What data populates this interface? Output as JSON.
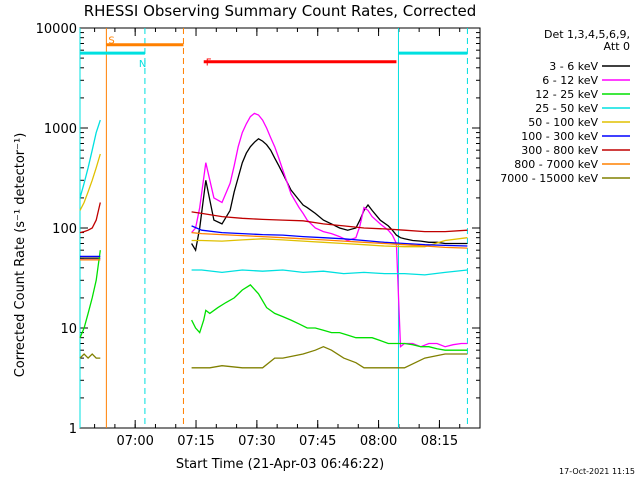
{
  "title": "RHESSI Observing Summary Count Rates, Corrected",
  "stamp": "17-Oct-2021 11:15",
  "legend": {
    "header_line1": "Det 1,3,4,5,6,9,",
    "header_line2": "Att 0"
  },
  "colors": {
    "3 - 6 keV": "#000000",
    "6 - 12 keV": "#ff00ff",
    "12 - 25 keV": "#00e000",
    "25 - 50 keV": "#00e0e0",
    "50 - 100 keV": "#e0c000",
    "100 - 300 keV": "#0000ff",
    "300 - 800 keV": "#c00000",
    "800 - 7000 keV": "#ff8000",
    "7000 - 15000 keV": "#808000",
    "saa_bar": "#ff8000",
    "night_bar": "#00e0e0",
    "flare_bar": "#ff0000"
  },
  "chart_data": {
    "type": "line",
    "title": "RHESSI Observing Summary Count Rates, Corrected",
    "xlabel": "Start Time (21-Apr-03 06:46:22)",
    "ylabel": "Corrected Count Rate (s⁻¹ detector⁻¹)",
    "y_scale": "log",
    "ylim": [
      1,
      10000
    ],
    "xlim": [
      "06:46:22",
      "08:25"
    ],
    "x_unit": "minutes after 06:46:22",
    "xlim_minutes": [
      0,
      98.6
    ],
    "x_ticks": [
      {
        "label": "07:00",
        "minute": 13.6
      },
      {
        "label": "07:15",
        "minute": 28.6
      },
      {
        "label": "07:30",
        "minute": 43.6
      },
      {
        "label": "07:45",
        "minute": 58.6
      },
      {
        "label": "08:00",
        "minute": 73.6
      },
      {
        "label": "08:15",
        "minute": 88.6
      }
    ],
    "y_ticks": [
      {
        "label": "1",
        "value": 1
      },
      {
        "label": "10",
        "value": 10
      },
      {
        "label": "100",
        "value": 100
      },
      {
        "label": "1000",
        "value": 1000
      },
      {
        "label": "10000",
        "value": 10000
      }
    ],
    "flag_bars": [
      {
        "label": "S",
        "name": "SAA",
        "x": [
          6.5,
          25.5
        ],
        "y": 6800,
        "color_key": "saa_bar"
      },
      {
        "label": "N",
        "name": "Night",
        "x": [
          0,
          16
        ],
        "y": 5600,
        "color_key": "night_bar"
      },
      {
        "label": "",
        "name": "Night",
        "x": [
          78.5,
          95.5
        ],
        "y": 5600,
        "color_key": "night_bar"
      },
      {
        "label": "F",
        "name": "Flare",
        "x": [
          30.5,
          78
        ],
        "y": 4600,
        "color_key": "flare_bar"
      }
    ],
    "vertical_lines": [
      {
        "x": 0,
        "style": "solid",
        "color_key": "night_bar"
      },
      {
        "x": 6.5,
        "style": "solid",
        "color_key": "saa_bar"
      },
      {
        "x": 16,
        "style": "dashed",
        "color_key": "night_bar"
      },
      {
        "x": 25.5,
        "style": "dashed",
        "color_key": "saa_bar"
      },
      {
        "x": 78.5,
        "style": "solid",
        "color_key": "night_bar"
      },
      {
        "x": 95.5,
        "style": "dashed",
        "color_key": "night_bar"
      }
    ],
    "series": [
      {
        "name": "3 - 6 keV",
        "x": [
          0,
          2,
          4,
          5,
          5.2,
          26.5,
          27.5,
          28.5,
          29.5,
          31,
          33,
          35,
          37,
          38,
          39,
          40,
          41,
          42,
          43,
          44,
          45,
          46,
          47,
          48,
          49,
          50,
          51,
          52,
          54,
          55,
          56,
          58,
          60,
          62,
          64,
          66,
          68,
          69,
          70,
          71,
          72,
          74,
          76,
          77,
          78,
          79,
          80,
          82,
          84,
          86,
          88,
          90,
          92,
          94,
          95.5
        ],
        "y": [
          50,
          50,
          50,
          50,
          null,
          null,
          70,
          60,
          100,
          300,
          120,
          110,
          150,
          230,
          320,
          450,
          560,
          650,
          720,
          780,
          740,
          680,
          600,
          500,
          420,
          350,
          290,
          240,
          190,
          170,
          160,
          140,
          120,
          110,
          100,
          95,
          100,
          120,
          150,
          170,
          150,
          120,
          105,
          95,
          85,
          80,
          78,
          75,
          74,
          72,
          72,
          70,
          70,
          70,
          70
        ]
      },
      {
        "name": "6 - 12 keV",
        "x": [
          0,
          2,
          4,
          5,
          5.2,
          26.5,
          27.5,
          28.5,
          29.5,
          31,
          33,
          35,
          37,
          38,
          39,
          40,
          41,
          42,
          43,
          44,
          45,
          46,
          47,
          48,
          49,
          50,
          51,
          52,
          54,
          55,
          56,
          58,
          60,
          62,
          64,
          66,
          68,
          69,
          70,
          71,
          72,
          74,
          76,
          77,
          78,
          79,
          80,
          82,
          84,
          86,
          88,
          90,
          92,
          94,
          95.5
        ],
        "y": [
          48,
          48,
          48,
          48,
          null,
          null,
          90,
          100,
          160,
          450,
          200,
          180,
          280,
          420,
          650,
          900,
          1100,
          1300,
          1400,
          1350,
          1200,
          1000,
          800,
          650,
          500,
          380,
          290,
          220,
          160,
          140,
          120,
          100,
          92,
          88,
          82,
          75,
          80,
          105,
          160,
          150,
          130,
          110,
          95,
          85,
          70,
          6.5,
          7,
          7,
          6.5,
          7,
          7,
          6.5,
          6.8,
          7,
          7
        ]
      },
      {
        "name": "12 - 25 keV",
        "x": [
          0,
          1,
          2,
          3,
          4,
          5,
          5.2,
          26.5,
          27.5,
          28.5,
          29.5,
          30.5,
          31,
          32,
          34,
          36,
          38,
          40,
          42,
          44,
          46,
          48,
          50,
          52,
          54,
          56,
          58,
          60,
          62,
          64,
          66,
          68,
          70,
          72,
          74,
          76,
          78,
          80,
          82,
          84,
          86,
          88,
          90,
          92,
          94,
          95.5
        ],
        "y": [
          8,
          10,
          14,
          20,
          30,
          60,
          null,
          null,
          12,
          10,
          9,
          12,
          15,
          14,
          16,
          18,
          20,
          24,
          27,
          22,
          16,
          14,
          13,
          12,
          11,
          10,
          10,
          9.5,
          9,
          9,
          8.5,
          8,
          8,
          8,
          7.5,
          7,
          7,
          7,
          6.8,
          6.5,
          6.5,
          6.2,
          6,
          6,
          6,
          6
        ]
      },
      {
        "name": "25 - 50 keV",
        "x": [
          0,
          1,
          2,
          3,
          4,
          5,
          5.2,
          26.5,
          27.5,
          30,
          35,
          40,
          45,
          50,
          55,
          60,
          65,
          70,
          75,
          80,
          85,
          90,
          95.5
        ],
        "y": [
          200,
          280,
          400,
          600,
          900,
          1200,
          null,
          null,
          38,
          38,
          36,
          38,
          37,
          38,
          36,
          37,
          35,
          36,
          35,
          35,
          34,
          36,
          38
        ]
      },
      {
        "name": "50 - 100 keV",
        "x": [
          0,
          1,
          2,
          3,
          4,
          5,
          5.2,
          26.5,
          27.5,
          30,
          35,
          40,
          45,
          50,
          55,
          60,
          65,
          70,
          75,
          80,
          85,
          90,
          95.5
        ],
        "y": [
          150,
          180,
          230,
          300,
          400,
          550,
          null,
          null,
          75,
          75,
          74,
          76,
          78,
          76,
          74,
          72,
          70,
          68,
          66,
          65,
          65,
          75,
          80
        ]
      },
      {
        "name": "100 - 300 keV",
        "x": [
          0,
          5,
          5.2,
          26.5,
          27.5,
          30,
          35,
          40,
          45,
          50,
          55,
          60,
          65,
          70,
          75,
          80,
          85,
          90,
          95.5
        ],
        "y": [
          52,
          52,
          null,
          null,
          105,
          95,
          90,
          88,
          86,
          85,
          82,
          80,
          78,
          75,
          72,
          70,
          68,
          67,
          66
        ]
      },
      {
        "name": "300 - 800 keV",
        "x": [
          0,
          1,
          2,
          3,
          4,
          5,
          5.2,
          26.5,
          27.5,
          30,
          35,
          40,
          45,
          50,
          55,
          60,
          65,
          70,
          75,
          80,
          85,
          90,
          95.5
        ],
        "y": [
          90,
          92,
          95,
          100,
          120,
          180,
          null,
          null,
          145,
          140,
          130,
          125,
          122,
          120,
          118,
          110,
          105,
          100,
          98,
          95,
          92,
          92,
          95
        ]
      },
      {
        "name": "800 - 7000 keV",
        "x": [
          0,
          1,
          2,
          3,
          4,
          5,
          5.2,
          26.5,
          27.5,
          30,
          35,
          40,
          45,
          50,
          55,
          60,
          65,
          70,
          75,
          80,
          85,
          90,
          95.5
        ],
        "y": [
          48,
          48,
          48,
          48,
          48,
          48,
          null,
          null,
          90,
          88,
          86,
          84,
          82,
          80,
          78,
          76,
          74,
          72,
          70,
          68,
          66,
          64,
          63
        ]
      },
      {
        "name": "7000 - 15000 keV",
        "x": [
          0,
          1,
          2,
          3,
          4,
          5,
          5.2,
          26.5,
          27.5,
          30,
          32,
          35,
          40,
          45,
          48,
          50,
          55,
          58,
          60,
          62,
          65,
          68,
          70,
          75,
          80,
          85,
          90,
          95.5
        ],
        "y": [
          5,
          5.5,
          5,
          5.5,
          5,
          5,
          null,
          null,
          4,
          4,
          4,
          4.2,
          4,
          4,
          5,
          5,
          5.5,
          6,
          6.5,
          6,
          5,
          4.5,
          4,
          4,
          4,
          5,
          5.5,
          5.5
        ]
      }
    ]
  }
}
